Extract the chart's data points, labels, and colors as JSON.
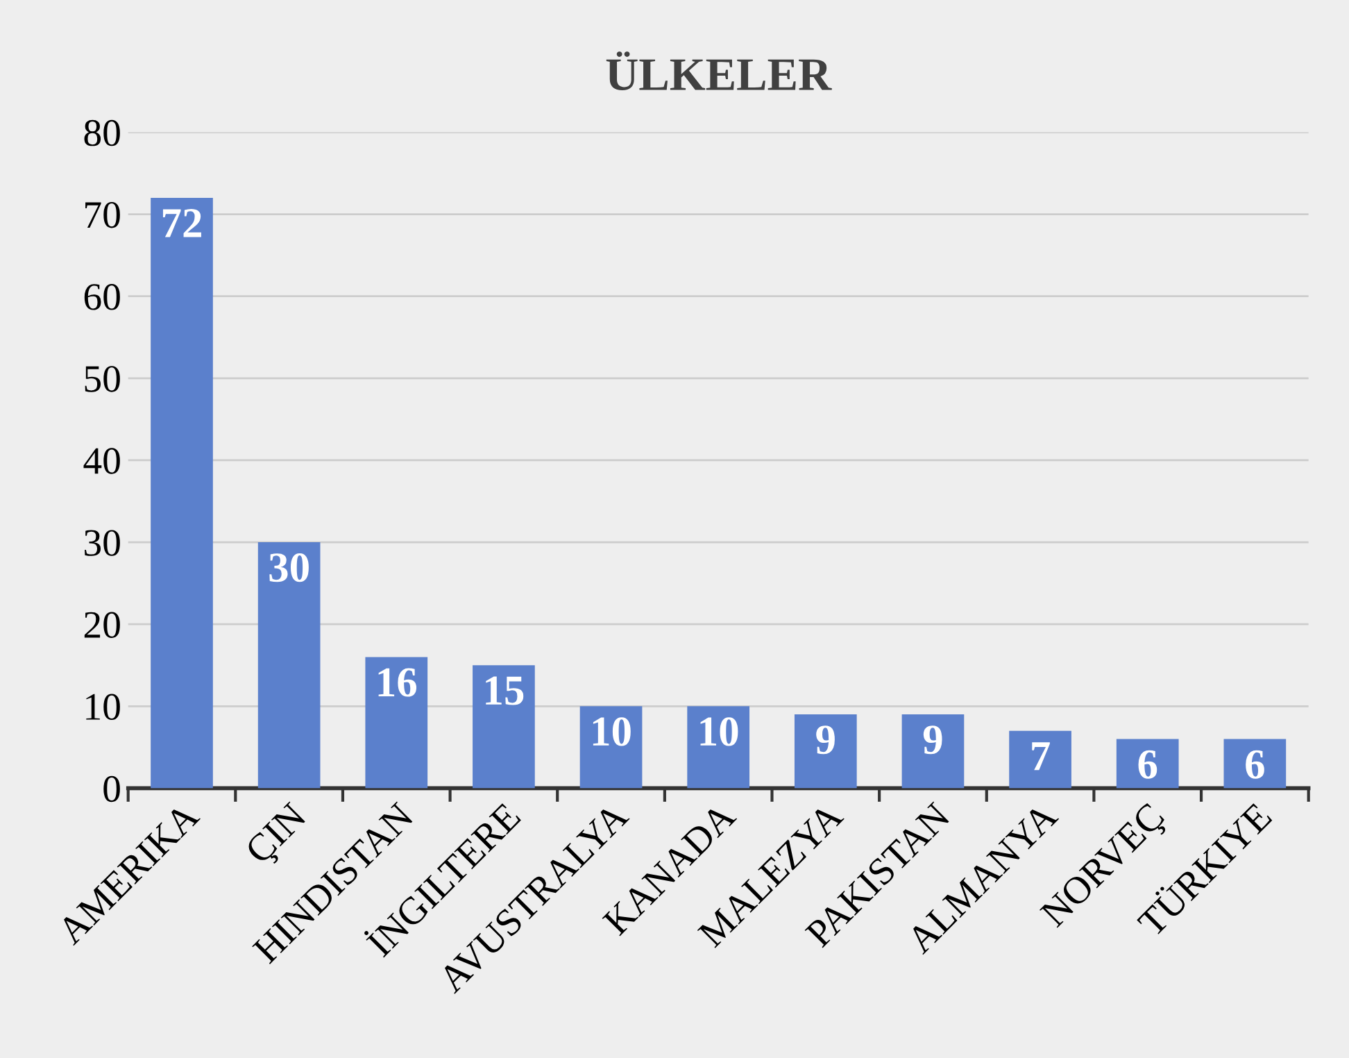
{
  "chart_data": {
    "type": "bar",
    "title": "ÜLKELER",
    "categories": [
      "AMERIKA",
      "ÇIN",
      "HINDISTAN",
      "İNGILTERE",
      "AVUSTRALYA",
      "KANADA",
      "MALEZYA",
      "PAKISTAN",
      "ALMANYA",
      "NORVEÇ",
      "TÜRKIYE"
    ],
    "values": [
      72,
      30,
      16,
      15,
      10,
      10,
      9,
      9,
      7,
      6,
      6
    ],
    "color": "#5b80cc",
    "ylim": [
      0,
      80
    ],
    "yticks": [
      0,
      10,
      20,
      30,
      40,
      50,
      60,
      70,
      80
    ],
    "grid": "y",
    "data_labels": true
  }
}
